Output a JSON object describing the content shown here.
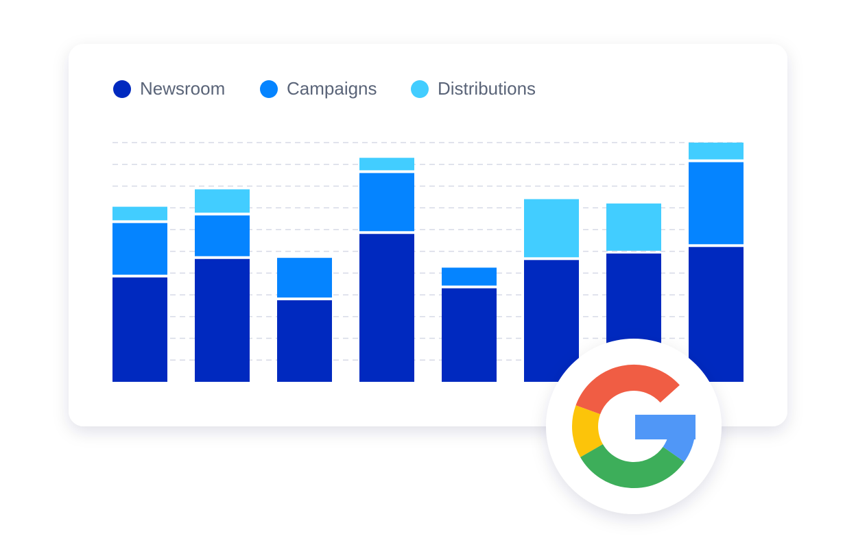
{
  "chart_data": {
    "type": "stacked_bar",
    "series": [
      {
        "name": "Newsroom",
        "color": "#0029bf",
        "values": [
          4.8,
          5.65,
          3.75,
          6.8,
          4.3,
          5.6,
          5.9,
          6.2
        ]
      },
      {
        "name": "Campaigns",
        "color": "#0584ff",
        "values": [
          2.5,
          2.0,
          1.95,
          2.8,
          0.95,
          0,
          0,
          3.9
        ]
      },
      {
        "name": "Distributions",
        "color": "#42cdff",
        "values": [
          0.75,
          1.2,
          0,
          0.7,
          0,
          2.8,
          2.3,
          0.9
        ]
      }
    ],
    "ylim": [
      0,
      11
    ],
    "yticks": [
      1,
      2,
      3,
      4,
      5,
      6,
      7,
      8,
      9,
      10,
      11
    ],
    "grid": true
  }
}
